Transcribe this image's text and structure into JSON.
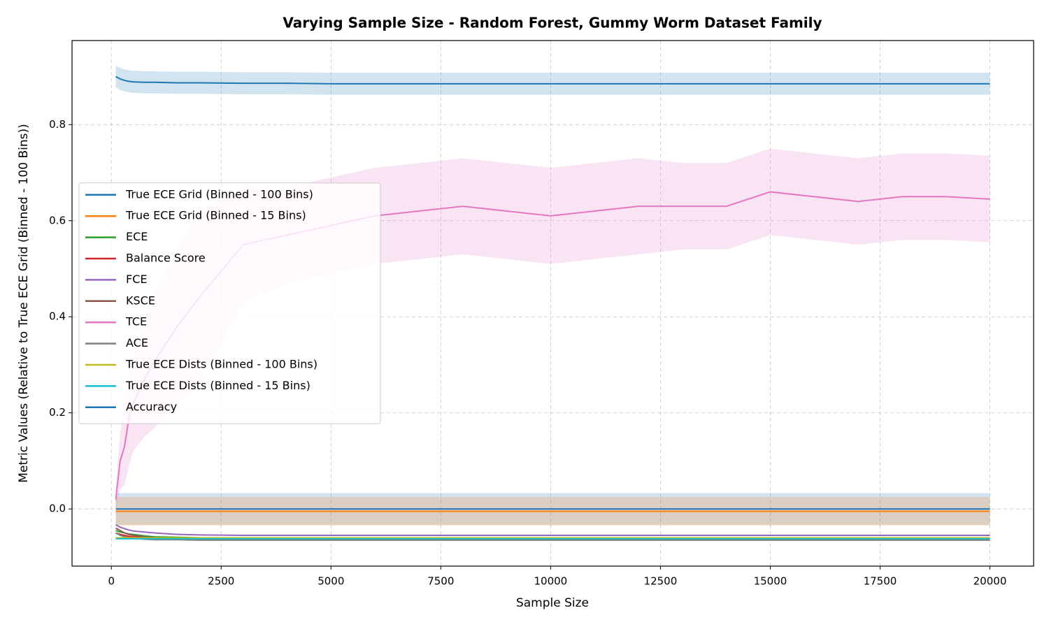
{
  "chart_data": {
    "type": "line",
    "title": "Varying Sample Size - Random Forest, Gummy Worm Dataset Family",
    "x_label": "Sample Size",
    "y_label": "Metric Values (Relative to True ECE Grid (Binned - 100 Bins))",
    "x": [
      100,
      200,
      300,
      400,
      500,
      750,
      1000,
      1500,
      2000,
      3000,
      4000,
      5000,
      6000,
      7000,
      8000,
      9000,
      10000,
      11000,
      12000,
      13000,
      14000,
      15000,
      16000,
      17000,
      18000,
      19000,
      20000
    ],
    "xlim": [
      -895,
      20995
    ],
    "ylim": [
      -0.119,
      0.975
    ],
    "xticks": [
      0,
      2500,
      5000,
      7500,
      10000,
      12500,
      15000,
      17500,
      20000
    ],
    "yticks": [
      {
        "value": 0,
        "label": "0.0"
      },
      0.2,
      0.4,
      0.6,
      0.8
    ],
    "grid": true,
    "legend": "center left",
    "series": [
      {
        "name": "True ECE Grid (Binned - 100 Bins)",
        "color": "#1f77b4",
        "values": [
          0,
          0,
          0,
          0,
          0,
          0,
          0,
          0,
          0,
          0,
          0,
          0,
          0,
          0,
          0,
          0,
          0,
          0,
          0,
          0,
          0,
          0,
          0,
          0,
          0,
          0,
          0
        ],
        "std": [
          0.033,
          0.033,
          0.033,
          0.033,
          0.033,
          0.033,
          0.033,
          0.033,
          0.033,
          0.033,
          0.033,
          0.033,
          0.033,
          0.033,
          0.033,
          0.033,
          0.033,
          0.033,
          0.033,
          0.033,
          0.033,
          0.033,
          0.033,
          0.033,
          0.033,
          0.033,
          0.033
        ]
      },
      {
        "name": "True ECE Grid (Binned - 15 Bins)",
        "color": "#ff7f0e",
        "values": [
          -0.005,
          -0.005,
          -0.005,
          -0.005,
          -0.005,
          -0.005,
          -0.005,
          -0.005,
          -0.005,
          -0.005,
          -0.005,
          -0.005,
          -0.005,
          -0.005,
          -0.005,
          -0.005,
          -0.005,
          -0.005,
          -0.005,
          -0.005,
          -0.005,
          -0.005,
          -0.005,
          -0.005,
          -0.005,
          -0.005,
          -0.005
        ],
        "std": [
          0.03,
          0.03,
          0.03,
          0.03,
          0.03,
          0.03,
          0.03,
          0.03,
          0.03,
          0.03,
          0.03,
          0.03,
          0.03,
          0.03,
          0.03,
          0.03,
          0.03,
          0.03,
          0.03,
          0.03,
          0.03,
          0.03,
          0.03,
          0.03,
          0.03,
          0.03,
          0.03
        ]
      },
      {
        "name": "ECE",
        "color": "#2ca02c",
        "values": [
          -0.045,
          -0.048,
          -0.05,
          -0.052,
          -0.053,
          -0.056,
          -0.058,
          -0.059,
          -0.06,
          -0.06,
          -0.06,
          -0.06,
          -0.06,
          -0.06,
          -0.06,
          -0.06,
          -0.06,
          -0.06,
          -0.06,
          -0.06,
          -0.06,
          -0.06,
          -0.06,
          -0.06,
          -0.06,
          -0.06,
          -0.06
        ]
      },
      {
        "name": "Balance Score",
        "color": "#d62728",
        "values": [
          -0.05,
          -0.053,
          -0.055,
          -0.057,
          -0.058,
          -0.059,
          -0.06,
          -0.06,
          -0.06,
          -0.06,
          -0.06,
          -0.06,
          -0.06,
          -0.06,
          -0.06,
          -0.06,
          -0.06,
          -0.06,
          -0.06,
          -0.06,
          -0.06,
          -0.06,
          -0.06,
          -0.06,
          -0.06,
          -0.06,
          -0.06
        ]
      },
      {
        "name": "FCE",
        "color": "#9467bd",
        "values": [
          -0.033,
          -0.038,
          -0.041,
          -0.044,
          -0.046,
          -0.048,
          -0.05,
          -0.053,
          -0.054,
          -0.055,
          -0.055,
          -0.055,
          -0.055,
          -0.055,
          -0.055,
          -0.055,
          -0.055,
          -0.055,
          -0.055,
          -0.055,
          -0.055,
          -0.055,
          -0.055,
          -0.055,
          -0.055,
          -0.055,
          -0.055
        ]
      },
      {
        "name": "KSCE",
        "color": "#8c564b",
        "values": [
          -0.04,
          -0.045,
          -0.05,
          -0.053,
          -0.055,
          -0.058,
          -0.06,
          -0.061,
          -0.062,
          -0.062,
          -0.062,
          -0.062,
          -0.062,
          -0.062,
          -0.062,
          -0.062,
          -0.062,
          -0.062,
          -0.062,
          -0.062,
          -0.062,
          -0.062,
          -0.062,
          -0.062,
          -0.062,
          -0.062,
          -0.062
        ]
      },
      {
        "name": "TCE",
        "color": "#e377c2",
        "values": [
          0.02,
          0.1,
          0.13,
          0.19,
          0.22,
          0.27,
          0.31,
          0.38,
          0.44,
          0.55,
          0.57,
          0.59,
          0.61,
          0.62,
          0.63,
          0.62,
          0.61,
          0.62,
          0.63,
          0.63,
          0.63,
          0.66,
          0.65,
          0.64,
          0.65,
          0.65,
          0.645
        ],
        "std": [
          0.02,
          0.06,
          0.08,
          0.1,
          0.1,
          0.12,
          0.14,
          0.16,
          0.18,
          0.12,
          0.1,
          0.1,
          0.1,
          0.1,
          0.1,
          0.1,
          0.1,
          0.1,
          0.1,
          0.09,
          0.09,
          0.09,
          0.09,
          0.09,
          0.09,
          0.09,
          0.09
        ]
      },
      {
        "name": "ACE",
        "color": "#7f7f7f",
        "values": [
          -0.05,
          -0.055,
          -0.058,
          -0.06,
          -0.061,
          -0.063,
          -0.064,
          -0.064,
          -0.065,
          -0.065,
          -0.065,
          -0.065,
          -0.065,
          -0.065,
          -0.065,
          -0.065,
          -0.065,
          -0.065,
          -0.065,
          -0.065,
          -0.065,
          -0.065,
          -0.065,
          -0.065,
          -0.065,
          -0.065,
          -0.065
        ]
      },
      {
        "name": "True ECE Dists (Binned - 100 Bins)",
        "color": "#bcbd22",
        "values": [
          -0.06,
          -0.06,
          -0.06,
          -0.06,
          -0.06,
          -0.06,
          -0.06,
          -0.06,
          -0.06,
          -0.06,
          -0.06,
          -0.06,
          -0.06,
          -0.06,
          -0.06,
          -0.06,
          -0.06,
          -0.06,
          -0.06,
          -0.06,
          -0.06,
          -0.06,
          -0.06,
          -0.06,
          -0.06,
          -0.06,
          -0.06
        ]
      },
      {
        "name": "True ECE Dists (Binned - 15 Bins)",
        "color": "#17becf",
        "values": [
          -0.062,
          -0.062,
          -0.062,
          -0.062,
          -0.062,
          -0.062,
          -0.062,
          -0.062,
          -0.062,
          -0.062,
          -0.062,
          -0.062,
          -0.062,
          -0.062,
          -0.062,
          -0.062,
          -0.062,
          -0.062,
          -0.062,
          -0.062,
          -0.062,
          -0.062,
          -0.062,
          -0.062,
          -0.062,
          -0.062,
          -0.062
        ]
      },
      {
        "name": "Accuracy",
        "color": "#1f77b4",
        "values": [
          0.9,
          0.895,
          0.892,
          0.89,
          0.889,
          0.888,
          0.888,
          0.887,
          0.887,
          0.886,
          0.886,
          0.885,
          0.885,
          0.885,
          0.885,
          0.885,
          0.885,
          0.885,
          0.885,
          0.885,
          0.885,
          0.885,
          0.885,
          0.885,
          0.885,
          0.885,
          0.885
        ],
        "std": [
          0.023,
          0.023,
          0.023,
          0.023,
          0.023,
          0.023,
          0.023,
          0.023,
          0.023,
          0.023,
          0.023,
          0.023,
          0.023,
          0.023,
          0.023,
          0.023,
          0.023,
          0.023,
          0.023,
          0.023,
          0.023,
          0.023,
          0.023,
          0.023,
          0.023,
          0.023,
          0.023
        ]
      }
    ]
  }
}
